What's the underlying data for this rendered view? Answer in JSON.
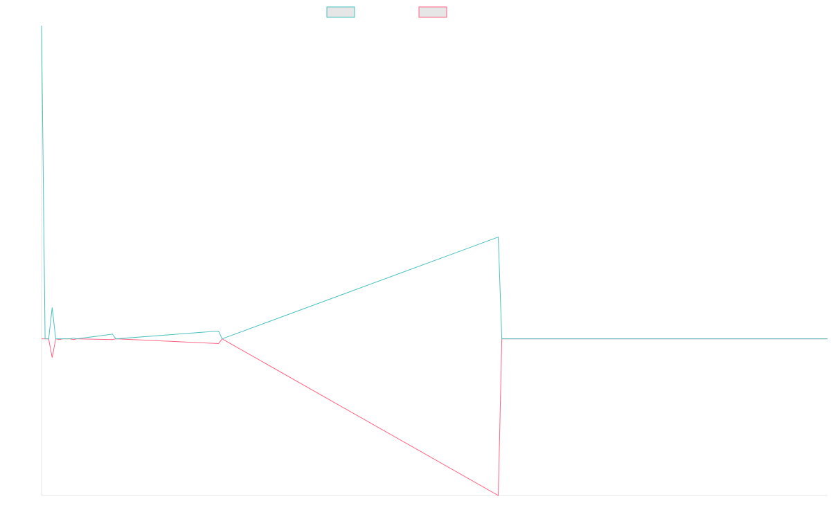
{
  "chart_data": {
    "type": "line",
    "title": "",
    "xlabel": "",
    "ylabel": "",
    "legend": {
      "placement": "top-center"
    },
    "grid": false,
    "x": [
      0,
      1,
      2,
      3,
      4,
      5,
      6,
      7,
      8,
      9,
      10,
      11,
      12,
      13,
      14,
      15,
      16,
      17,
      18,
      19,
      20,
      21,
      22,
      23,
      24,
      25,
      26,
      27,
      28,
      29,
      30,
      31,
      32,
      33,
      34,
      35,
      36,
      37,
      38,
      39,
      40,
      41,
      42,
      43,
      44,
      45,
      46,
      47,
      48,
      49,
      50,
      51,
      52,
      53,
      54,
      55,
      56,
      57,
      58,
      59,
      60,
      61,
      62,
      63,
      64,
      65,
      66,
      67,
      68,
      69,
      70,
      71,
      72,
      73,
      74,
      75,
      76,
      77,
      78,
      79,
      80,
      81,
      82,
      83,
      84,
      85,
      86,
      87,
      88,
      89,
      90,
      91,
      92,
      93,
      94,
      95,
      96,
      97,
      98,
      99,
      100,
      101,
      102,
      103,
      104,
      105,
      106,
      107,
      108,
      109,
      110,
      111,
      112,
      113,
      114,
      115,
      116,
      117,
      118,
      119,
      120,
      121,
      122,
      123,
      124,
      125,
      126,
      127,
      128,
      129,
      130,
      131,
      132,
      133,
      134,
      135,
      136,
      137,
      138,
      139,
      140,
      141,
      142,
      143,
      144,
      145,
      146,
      147,
      148,
      149,
      150,
      151,
      152,
      153,
      154,
      155,
      156,
      157,
      158,
      159,
      160,
      161,
      162,
      163,
      164,
      165,
      166,
      167,
      168,
      169,
      170,
      171,
      172,
      173,
      174,
      175,
      176,
      177,
      178,
      179,
      180,
      181,
      182,
      183,
      184,
      185,
      186,
      187,
      188,
      189,
      190,
      191,
      192,
      193,
      194,
      195,
      196,
      197,
      198,
      199,
      200,
      201,
      202,
      203,
      204,
      205,
      206,
      207,
      208,
      209,
      210,
      211,
      212,
      213,
      214,
      215,
      216,
      217,
      218,
      219,
      220,
      221,
      222
    ],
    "ylim": [
      -1,
      2
    ],
    "xlim": [
      0,
      222
    ],
    "series": [
      {
        "color": "#4bc0c0",
        "points": [
          [
            0,
            2.0
          ],
          [
            1,
            0.0
          ],
          [
            2,
            0.0
          ],
          [
            3,
            0.2
          ],
          [
            4,
            0.0
          ],
          [
            5,
            0.0
          ],
          [
            6,
            0.0
          ],
          [
            7,
            0.0
          ],
          [
            8,
            0.0
          ],
          [
            9,
            0.005
          ],
          [
            10,
            0.0
          ],
          [
            20,
            0.03
          ],
          [
            21,
            0.0
          ],
          [
            50,
            0.05
          ],
          [
            51,
            0.0
          ],
          [
            129,
            0.65
          ],
          [
            130,
            0.0
          ],
          [
            222,
            0.0
          ]
        ]
      },
      {
        "color": "#ff6384",
        "points": [
          [
            0,
            0.0
          ],
          [
            1,
            0.0
          ],
          [
            2,
            0.0
          ],
          [
            3,
            -0.12
          ],
          [
            4,
            0.0
          ],
          [
            5,
            -0.005
          ],
          [
            6,
            0.0
          ],
          [
            7,
            0.0
          ],
          [
            8,
            0.0
          ],
          [
            9,
            -0.005
          ],
          [
            10,
            0.0
          ],
          [
            20,
            -0.005
          ],
          [
            21,
            0.0
          ],
          [
            50,
            -0.03
          ],
          [
            51,
            0.0
          ],
          [
            129,
            -1.0
          ],
          [
            130,
            0.0
          ],
          [
            222,
            0.0
          ]
        ]
      }
    ]
  }
}
